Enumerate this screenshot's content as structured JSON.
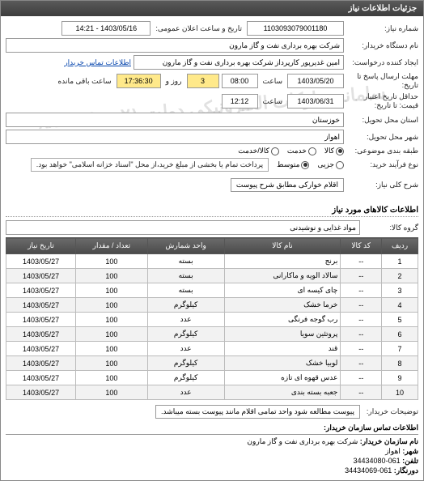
{
  "panel": {
    "title": "جزئیات اطلاعات نیاز"
  },
  "watermark": "سامانه تدارکات الکترونیکی دولت\n۰۲۱ - ۸۸۳۴۹۶",
  "form": {
    "needNumber": {
      "label": "شماره نیاز:",
      "value": "1103093079001180"
    },
    "announceDateTime": {
      "label": "تاریخ و ساعت اعلان عمومی:",
      "value": "1403/05/16 - 14:21"
    },
    "orgName": {
      "label": "نام دستگاه خریدار:",
      "value": "شرکت بهره برداری نفت و گاز مارون"
    },
    "creator": {
      "label": "ایجاد کننده درخواست:",
      "value": "امین غدیرپور کارپرداز شرکت بهره برداری نفت و گاز مارون"
    },
    "contactLink": "اطلاعات تماس خریدار",
    "sendDeadline": {
      "label": "مهلت ارسال پاسخ تا تاریخ:",
      "date": "1403/05/20",
      "timeLabel": "ساعت",
      "time": "08:00",
      "daysVal": "3",
      "daysLabel": "روز و",
      "remain": "17:36:30",
      "remainLabel": "ساعت باقی مانده"
    },
    "minValidity": {
      "label": "حداقل تاریخ اعتبار قیمت: تا تاریخ:",
      "date": "1403/06/31",
      "timeLabel": "ساعت",
      "time": "12:12"
    },
    "province": {
      "label": "استان محل تحویل:",
      "value": "خوزستان"
    },
    "city": {
      "label": "شهر محل تحویل:",
      "value": "اهواز"
    },
    "itemType": {
      "label": "طبقه بندی موضوعی:",
      "options": [
        {
          "label": "کالا",
          "checked": true
        },
        {
          "label": "خدمت",
          "checked": false
        },
        {
          "label": "کالا/خدمت",
          "checked": false
        }
      ]
    },
    "procType": {
      "label": "نوع فرآیند خرید:",
      "options": [
        {
          "label": "جزیی",
          "checked": false
        },
        {
          "label": "متوسط",
          "checked": true
        }
      ],
      "note": "پرداخت تمام یا بخشی از مبلغ خرید،از محل \"اسناد خزانه اسلامی\" خواهد بود."
    },
    "generalDesc": {
      "label": "شرح کلی نیاز:",
      "value": "اقلام خوارکی مطابق شرح پیوست"
    },
    "itemsTitle": "اطلاعات کالاهای مورد نیاز",
    "goodsGroup": {
      "label": "گروه کالا:",
      "value": "مواد غذایی و نوشیدنی"
    },
    "buyerNotes": {
      "label": "توضیحات خریدار:",
      "value": "پیوست مطالعه شود واحد تمامی اقلام مانند پیوست بسته میباشد."
    }
  },
  "table": {
    "columns": [
      "ردیف",
      "کد کالا",
      "نام کالا",
      "واحد شمارش",
      "تعداد / مقدار",
      "تاریخ نیاز"
    ],
    "rows": [
      [
        "1",
        "--",
        "برنج",
        "بسته",
        "100",
        "1403/05/27"
      ],
      [
        "2",
        "--",
        "سالاد الویه و ماکارانی",
        "بسته",
        "100",
        "1403/05/27"
      ],
      [
        "3",
        "--",
        "چای کیسه ای",
        "بسته",
        "100",
        "1403/05/27"
      ],
      [
        "4",
        "--",
        "خرما خشک",
        "کیلوگرم",
        "100",
        "1403/05/27"
      ],
      [
        "5",
        "--",
        "رب گوجه فرنگی",
        "عدد",
        "100",
        "1403/05/27"
      ],
      [
        "6",
        "--",
        "پروتئین سویا",
        "کیلوگرم",
        "100",
        "1403/05/27"
      ],
      [
        "7",
        "--",
        "قند",
        "عدد",
        "100",
        "1403/05/27"
      ],
      [
        "8",
        "--",
        "لوبیا خشک",
        "کیلوگرم",
        "100",
        "1403/05/27"
      ],
      [
        "9",
        "--",
        "عدس قهوه ای تازه",
        "کیلوگرم",
        "100",
        "1403/05/27"
      ],
      [
        "10",
        "--",
        "جعبه بسته بندی",
        "عدد",
        "100",
        "1403/05/27"
      ]
    ]
  },
  "footer": {
    "title": "اطلاعات تماس سازمان خریدار:",
    "org": {
      "k": "نام سازمان خریدار:",
      "v": "شرکت بهره برداری نفت و گاز مارون"
    },
    "city": {
      "k": "شهر:",
      "v": "اهواز"
    },
    "tel": {
      "k": "تلفن:",
      "v": "061-34434080"
    },
    "fax": {
      "k": "دورنگار:",
      "v": "061-34434069"
    }
  }
}
